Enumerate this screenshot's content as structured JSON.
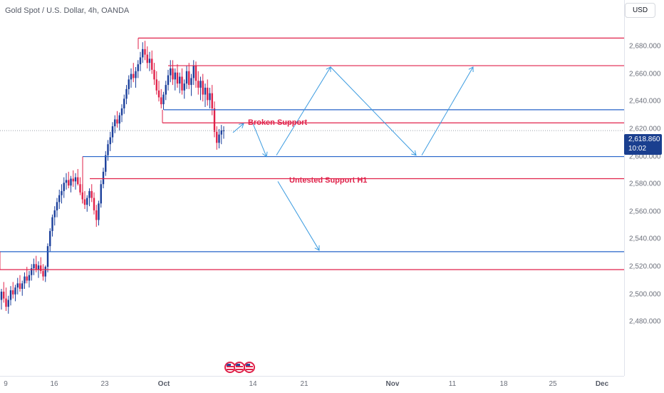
{
  "header": {
    "symbol_title": "Gold Spot / U.S. Dollar, 4h, OANDA",
    "currency": "USD"
  },
  "price_badge": {
    "price": "2,618.860",
    "countdown": "10:02"
  },
  "annotations": {
    "broken_support": "Broken Support",
    "untested_support": "Untested Support H1"
  },
  "colors": {
    "bull": "#1a3f9b",
    "bear": "#e0224a",
    "support_line": "#2563c9",
    "resistance_line": "#e0224a",
    "projection_arrow": "#3b9be0",
    "badge": "#1a3f8f"
  },
  "chart_data": {
    "type": "candlestick",
    "instrument": "Gold Spot / U.S. Dollar",
    "timeframe": "4h",
    "source": "OANDA",
    "current_price": 2618.86,
    "y_axis_ticks": [
      "2,680.000",
      "2,660.000",
      "2,640.000",
      "2,620.000",
      "2,600.000",
      "2,580.000",
      "2,560.000",
      "2,540.000",
      "2,520.000",
      "2,500.000",
      "2,480.000"
    ],
    "y_tick_values": [
      2680,
      2660,
      2640,
      2620,
      2600,
      2580,
      2560,
      2540,
      2520,
      2500,
      2480
    ],
    "x_axis_ticks": [
      {
        "label": "9",
        "bold": false
      },
      {
        "label": "16",
        "bold": false
      },
      {
        "label": "23",
        "bold": false
      },
      {
        "label": "Oct",
        "bold": true
      },
      {
        "label": "14",
        "bold": false
      },
      {
        "label": "21",
        "bold": false
      },
      {
        "label": "Nov",
        "bold": true
      },
      {
        "label": "11",
        "bold": false
      },
      {
        "label": "18",
        "bold": false
      },
      {
        "label": "25",
        "bold": false
      },
      {
        "label": "Dec",
        "bold": true
      }
    ],
    "ylim": [
      2472,
      2693
    ],
    "horizontal_levels": [
      {
        "price": 2686,
        "role": "resistance"
      },
      {
        "price": 2666,
        "role": "resistance"
      },
      {
        "price": 2634,
        "role": "support"
      },
      {
        "price": 2624.5,
        "role": "resistance"
      },
      {
        "price": 2600,
        "role": "support"
      },
      {
        "price": 2584,
        "role": "resistance"
      },
      {
        "price": 2531,
        "role": "support"
      },
      {
        "price": 2518,
        "role": "resistance"
      }
    ],
    "projection_path_prices": [
      2624,
      2600,
      2665,
      2601,
      2665
    ],
    "projection_branch_prices": [
      2584,
      2532
    ],
    "ohlc": [
      [
        2496,
        2504,
        2489,
        2502
      ],
      [
        2502,
        2509,
        2494,
        2497
      ],
      [
        2497,
        2505,
        2488,
        2491
      ],
      [
        2491,
        2499,
        2486,
        2496
      ],
      [
        2496,
        2506,
        2492,
        2503
      ],
      [
        2503,
        2509,
        2497,
        2500
      ],
      [
        2500,
        2507,
        2495,
        2505
      ],
      [
        2505,
        2512,
        2500,
        2508
      ],
      [
        2508,
        2514,
        2502,
        2504
      ],
      [
        2504,
        2510,
        2499,
        2508
      ],
      [
        2508,
        2516,
        2504,
        2513
      ],
      [
        2513,
        2520,
        2508,
        2510
      ],
      [
        2510,
        2517,
        2505,
        2514
      ],
      [
        2514,
        2522,
        2510,
        2519
      ],
      [
        2519,
        2526,
        2514,
        2522
      ],
      [
        2522,
        2528,
        2516,
        2518
      ],
      [
        2518,
        2524,
        2512,
        2521
      ],
      [
        2521,
        2527,
        2515,
        2517
      ],
      [
        2517,
        2522,
        2510,
        2513
      ],
      [
        2513,
        2521,
        2509,
        2520
      ],
      [
        2520,
        2537,
        2516,
        2535
      ],
      [
        2535,
        2548,
        2531,
        2546
      ],
      [
        2546,
        2558,
        2542,
        2556
      ],
      [
        2556,
        2564,
        2550,
        2561
      ],
      [
        2561,
        2570,
        2556,
        2567
      ],
      [
        2567,
        2576,
        2562,
        2572
      ],
      [
        2572,
        2580,
        2566,
        2575
      ],
      [
        2575,
        2585,
        2570,
        2581
      ],
      [
        2581,
        2588,
        2576,
        2583
      ],
      [
        2583,
        2589,
        2577,
        2579
      ],
      [
        2579,
        2586,
        2574,
        2584
      ],
      [
        2584,
        2590,
        2578,
        2582
      ],
      [
        2582,
        2588,
        2576,
        2585
      ],
      [
        2585,
        2591,
        2579,
        2580
      ],
      [
        2580,
        2585,
        2572,
        2574
      ],
      [
        2574,
        2580,
        2566,
        2569
      ],
      [
        2569,
        2575,
        2562,
        2565
      ],
      [
        2565,
        2572,
        2560,
        2570
      ],
      [
        2570,
        2577,
        2564,
        2575
      ],
      [
        2575,
        2580,
        2567,
        2570
      ],
      [
        2570,
        2574,
        2558,
        2561
      ],
      [
        2561,
        2565,
        2549,
        2554
      ],
      [
        2554,
        2568,
        2550,
        2566
      ],
      [
        2566,
        2583,
        2563,
        2580
      ],
      [
        2580,
        2592,
        2577,
        2589
      ],
      [
        2589,
        2604,
        2586,
        2601
      ],
      [
        2601,
        2612,
        2597,
        2609
      ],
      [
        2609,
        2618,
        2604,
        2614
      ],
      [
        2614,
        2625,
        2610,
        2622
      ],
      [
        2622,
        2630,
        2617,
        2627
      ],
      [
        2627,
        2633,
        2621,
        2624
      ],
      [
        2624,
        2632,
        2619,
        2630
      ],
      [
        2630,
        2638,
        2625,
        2635
      ],
      [
        2635,
        2645,
        2631,
        2642
      ],
      [
        2642,
        2652,
        2638,
        2649
      ],
      [
        2649,
        2659,
        2645,
        2656
      ],
      [
        2656,
        2664,
        2650,
        2660
      ],
      [
        2660,
        2668,
        2654,
        2657
      ],
      [
        2657,
        2665,
        2650,
        2662
      ],
      [
        2662,
        2670,
        2657,
        2667
      ],
      [
        2667,
        2676,
        2662,
        2672
      ],
      [
        2672,
        2683,
        2668,
        2678
      ],
      [
        2678,
        2684,
        2670,
        2674
      ],
      [
        2674,
        2680,
        2664,
        2668
      ],
      [
        2668,
        2676,
        2662,
        2671
      ],
      [
        2671,
        2677,
        2660,
        2663
      ],
      [
        2663,
        2668,
        2652,
        2656
      ],
      [
        2656,
        2662,
        2645,
        2648
      ],
      [
        2648,
        2655,
        2640,
        2643
      ],
      [
        2643,
        2649,
        2635,
        2638
      ],
      [
        2638,
        2647,
        2634,
        2645
      ],
      [
        2645,
        2655,
        2641,
        2652
      ],
      [
        2652,
        2663,
        2648,
        2659
      ],
      [
        2659,
        2670,
        2654,
        2664
      ],
      [
        2664,
        2670,
        2652,
        2656
      ],
      [
        2656,
        2664,
        2648,
        2661
      ],
      [
        2661,
        2667,
        2650,
        2653
      ],
      [
        2653,
        2661,
        2646,
        2658
      ],
      [
        2658,
        2664,
        2645,
        2648
      ],
      [
        2648,
        2656,
        2642,
        2653
      ],
      [
        2653,
        2666,
        2649,
        2662
      ],
      [
        2662,
        2668,
        2649,
        2652
      ],
      [
        2652,
        2660,
        2644,
        2657
      ],
      [
        2657,
        2670,
        2652,
        2666
      ],
      [
        2666,
        2669,
        2650,
        2655
      ],
      [
        2655,
        2662,
        2645,
        2650
      ],
      [
        2650,
        2658,
        2641,
        2655
      ],
      [
        2655,
        2660,
        2640,
        2645
      ],
      [
        2645,
        2653,
        2636,
        2650
      ],
      [
        2650,
        2656,
        2637,
        2641
      ],
      [
        2641,
        2650,
        2635,
        2646
      ],
      [
        2646,
        2652,
        2630,
        2635
      ],
      [
        2635,
        2640,
        2614,
        2618
      ],
      [
        2618,
        2622,
        2605,
        2610
      ],
      [
        2610,
        2620,
        2606,
        2616
      ],
      [
        2616,
        2623,
        2609,
        2619
      ],
      [
        2619,
        2622,
        2613,
        2619
      ]
    ]
  }
}
